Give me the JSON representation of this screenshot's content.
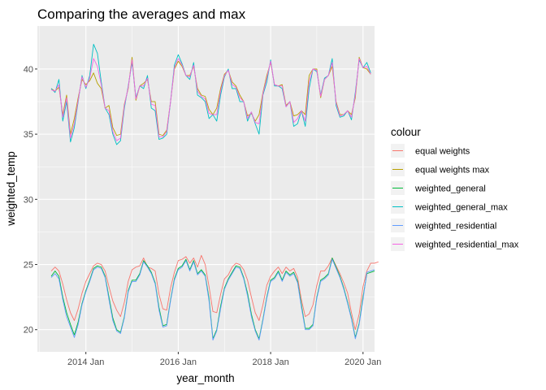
{
  "chart_data": {
    "type": "line",
    "title": "Comparing the averages and max",
    "xlabel": "year_month",
    "ylabel": "weighted_temp",
    "x_tick_labels": [
      "2014 Jan",
      "2016 Jan",
      "2018 Jan",
      "2020 Jan"
    ],
    "y_ticks": [
      20,
      25,
      30,
      35,
      40
    ],
    "xlim": [
      2012.95,
      2020.25
    ],
    "ylim": [
      18.3,
      43.3
    ],
    "x_start": 2013.25,
    "x_step": 0.0833333,
    "grid": true,
    "legend_position": "right",
    "legend_title": "colour",
    "series": [
      {
        "name": "equal weights",
        "color": "#F8766D",
        "values": [
          24.5,
          24.8,
          24.5,
          23.5,
          22.3,
          21.3,
          20.7,
          21.6,
          22.8,
          23.7,
          24.3,
          24.9,
          25.1,
          25.0,
          24.5,
          23.3,
          22.2,
          21.5,
          21.0,
          22.1,
          23.7,
          24.6,
          24.8,
          24.9,
          25.5,
          24.8,
          24.7,
          24.5,
          22.7,
          21.6,
          21.5,
          23.2,
          24.4,
          25.3,
          25.4,
          25.6,
          25.1,
          25.5,
          24.8,
          25.7,
          25.0,
          23.3,
          21.4,
          21.3,
          22.7,
          23.9,
          24.2,
          24.8,
          25.1,
          25.0,
          24.6,
          23.8,
          22.5,
          21.3,
          20.7,
          21.9,
          23.4,
          24.1,
          24.5,
          24.8,
          24.3,
          24.8,
          24.5,
          24.7,
          24.0,
          22.3,
          21.0,
          21.2,
          21.9,
          23.4,
          24.5,
          24.5,
          24.9,
          25.5,
          24.9,
          24.3,
          23.6,
          22.8,
          21.3,
          20.0,
          21.2,
          23.3,
          24.5,
          25.1,
          25.1,
          25.2
        ]
      },
      {
        "name": "equal weights max",
        "color": "#B79F00",
        "values": [
          38.5,
          38.3,
          38.6,
          36.5,
          38.0,
          35.0,
          36.2,
          37.8,
          39.2,
          38.8,
          39.1,
          39.7,
          38.9,
          38.5,
          37.0,
          37.2,
          35.5,
          34.9,
          35.0,
          37.3,
          38.5,
          40.9,
          37.6,
          38.7,
          38.9,
          39.2,
          37.5,
          37.5,
          35.0,
          34.9,
          35.3,
          37.5,
          40.0,
          40.6,
          40.2,
          39.5,
          39.5,
          40.2,
          38.5,
          38.0,
          37.9,
          36.9,
          36.5,
          37.0,
          38.5,
          39.6,
          39.9,
          39.0,
          38.7,
          38.0,
          37.5,
          36.4,
          36.6,
          36.0,
          36.5,
          38.2,
          39.5,
          40.5,
          38.8,
          38.7,
          38.8,
          37.2,
          37.5,
          36.4,
          36.5,
          36.8,
          36.5,
          39.5,
          40.0,
          40.0,
          37.8,
          39.2,
          39.5,
          40.2,
          37.5,
          36.5,
          36.5,
          36.8,
          36.5,
          37.8,
          40.9,
          40.1,
          40.0,
          39.6
        ]
      },
      {
        "name": "weighted_general",
        "color": "#00BA38",
        "values": [
          24.1,
          24.5,
          24.1,
          22.5,
          21.3,
          20.4,
          19.6,
          20.6,
          22.0,
          23.0,
          23.8,
          24.7,
          24.9,
          24.8,
          24.1,
          22.5,
          20.9,
          20.0,
          19.8,
          21.0,
          23.0,
          23.8,
          23.8,
          24.3,
          25.3,
          24.9,
          24.4,
          23.6,
          21.7,
          20.3,
          20.4,
          22.3,
          23.9,
          24.7,
          24.9,
          25.4,
          24.6,
          25.3,
          24.3,
          24.6,
          24.2,
          22.4,
          19.3,
          20.0,
          21.8,
          23.2,
          23.9,
          24.4,
          24.9,
          24.8,
          24.0,
          22.8,
          21.2,
          20.0,
          19.3,
          20.8,
          22.5,
          23.8,
          24.0,
          24.5,
          23.8,
          24.5,
          24.2,
          24.4,
          23.7,
          21.9,
          20.1,
          20.1,
          20.4,
          22.5,
          23.8,
          24.0,
          24.3,
          25.5,
          24.8,
          24.1,
          23.2,
          22.1,
          20.9,
          19.4,
          20.5,
          22.5,
          24.3,
          24.4,
          24.5
        ]
      },
      {
        "name": "weighted_general_max",
        "color": "#00BFC4",
        "values": [
          38.5,
          38.2,
          39.2,
          36.0,
          37.5,
          34.4,
          35.5,
          37.5,
          39.5,
          38.5,
          39.5,
          41.9,
          41.2,
          39.0,
          37.0,
          36.5,
          35.0,
          34.2,
          34.5,
          37.0,
          38.7,
          40.5,
          37.8,
          38.7,
          38.5,
          39.5,
          37.0,
          36.8,
          34.6,
          34.7,
          35.0,
          37.5,
          40.3,
          41.1,
          40.4,
          39.5,
          39.2,
          40.5,
          38.0,
          37.8,
          37.5,
          36.2,
          36.5,
          36.0,
          38.0,
          39.4,
          40.0,
          38.5,
          38.5,
          37.5,
          37.5,
          36.0,
          36.7,
          35.8,
          35.0,
          38.0,
          39.0,
          40.7,
          38.7,
          38.7,
          38.5,
          37.1,
          37.5,
          35.6,
          35.8,
          36.8,
          35.6,
          38.5,
          40.0,
          39.8,
          38.0,
          39.3,
          39.5,
          40.8,
          37.2,
          36.3,
          36.4,
          36.8,
          36.1,
          38.2,
          40.7,
          40.1,
          40.5,
          39.7
        ]
      },
      {
        "name": "weighted_residential",
        "color": "#619CFF",
        "values": [
          24.0,
          24.3,
          23.9,
          22.3,
          21.0,
          20.2,
          19.4,
          20.4,
          21.9,
          22.9,
          23.7,
          24.6,
          24.8,
          24.7,
          24.0,
          22.3,
          20.7,
          19.9,
          19.7,
          20.9,
          22.9,
          23.7,
          23.7,
          24.2,
          25.2,
          24.8,
          24.3,
          23.5,
          21.5,
          20.2,
          20.3,
          22.2,
          23.8,
          24.6,
          24.8,
          25.3,
          24.5,
          25.2,
          24.2,
          24.5,
          24.1,
          22.2,
          19.2,
          19.9,
          21.6,
          23.1,
          23.8,
          24.3,
          24.8,
          24.7,
          23.9,
          22.6,
          21.0,
          19.9,
          19.2,
          20.7,
          22.4,
          23.7,
          23.9,
          24.4,
          23.7,
          24.4,
          24.1,
          24.3,
          23.6,
          21.7,
          20.0,
          20.0,
          20.3,
          22.4,
          23.7,
          23.9,
          24.2,
          25.4,
          24.7,
          24.0,
          23.1,
          22.0,
          20.8,
          19.3,
          20.4,
          22.3,
          24.4,
          24.5,
          24.6
        ]
      },
      {
        "name": "weighted_residential_max",
        "color": "#F564E3",
        "values": [
          38.4,
          38.3,
          38.8,
          36.3,
          37.8,
          34.7,
          35.8,
          37.6,
          39.4,
          38.6,
          39.3,
          40.8,
          40.2,
          38.8,
          37.0,
          36.8,
          35.2,
          34.5,
          34.7,
          37.2,
          38.6,
          40.7,
          37.7,
          38.7,
          38.7,
          39.3,
          37.3,
          37.2,
          34.8,
          34.8,
          35.2,
          37.5,
          40.1,
          40.8,
          40.3,
          39.5,
          39.4,
          40.3,
          38.3,
          37.9,
          37.7,
          36.6,
          36.5,
          36.5,
          38.3,
          39.5,
          39.9,
          38.8,
          38.6,
          37.8,
          37.5,
          36.2,
          36.7,
          35.9,
          35.8,
          38.1,
          39.3,
          40.6,
          38.8,
          38.7,
          38.7,
          37.1,
          37.5,
          35.9,
          36.2,
          36.8,
          36.0,
          39.0,
          40.0,
          39.9,
          37.9,
          39.2,
          39.5,
          40.5,
          37.4,
          36.4,
          36.5,
          36.8,
          36.3,
          38.0,
          40.8,
          40.1,
          40.2,
          39.6
        ]
      }
    ]
  }
}
